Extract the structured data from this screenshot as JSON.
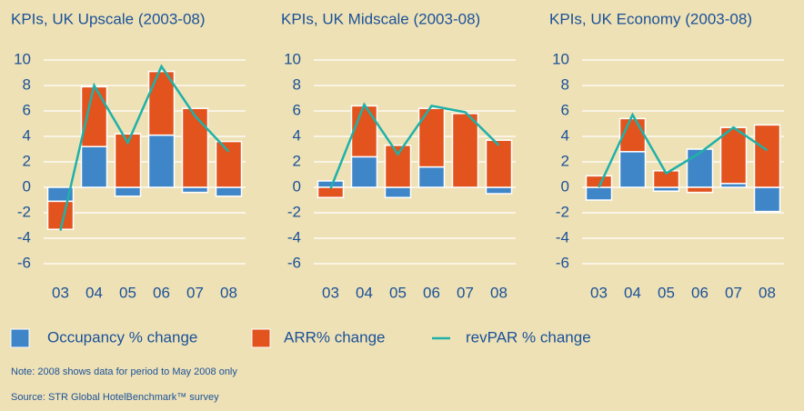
{
  "chart_data": [
    {
      "type": "bar",
      "title": "KPIs, UK Upscale (2003-08)",
      "categories": [
        "03",
        "04",
        "05",
        "06",
        "07",
        "08"
      ],
      "series": [
        {
          "name": "Occupancy % change",
          "color": "#3f86c9",
          "values": [
            -1.1,
            3.2,
            -0.7,
            4.1,
            -0.4,
            -0.7
          ]
        },
        {
          "name": "ARR% change",
          "color": "#e2531d",
          "values": [
            -2.2,
            4.7,
            4.2,
            5.0,
            6.2,
            3.6
          ]
        },
        {
          "name": "revPAR % change",
          "color": "#1fb1a8",
          "type": "line",
          "values": [
            -3.4,
            8.0,
            3.5,
            9.5,
            5.6,
            2.8
          ]
        }
      ],
      "ylim": [
        -6,
        10
      ],
      "yticks": [
        -6,
        -4,
        -2,
        0,
        2,
        4,
        6,
        8,
        10
      ],
      "grid": true
    },
    {
      "type": "bar",
      "title": "KPIs, UK Midscale (2003-08)",
      "categories": [
        "03",
        "04",
        "05",
        "06",
        "07",
        "08"
      ],
      "series": [
        {
          "name": "Occupancy % change",
          "color": "#3f86c9",
          "values": [
            0.5,
            2.4,
            -0.8,
            1.6,
            0,
            -0.5
          ]
        },
        {
          "name": "ARR% change",
          "color": "#e2531d",
          "values": [
            -0.8,
            4.0,
            3.3,
            4.6,
            5.8,
            3.7
          ]
        },
        {
          "name": "revPAR % change",
          "color": "#1fb1a8",
          "type": "line",
          "values": [
            -0.1,
            6.5,
            2.6,
            6.4,
            5.9,
            3.3
          ]
        }
      ],
      "ylim": [
        -6,
        10
      ],
      "yticks": [
        -6,
        -4,
        -2,
        0,
        2,
        4,
        6,
        8,
        10
      ],
      "grid": true
    },
    {
      "type": "bar",
      "title": "KPIs, UK Economy (2003-08)",
      "categories": [
        "03",
        "04",
        "05",
        "06",
        "07",
        "08"
      ],
      "series": [
        {
          "name": "Occupancy % change",
          "color": "#3f86c9",
          "values": [
            -1.0,
            2.8,
            -0.3,
            3.0,
            0.3,
            -1.9
          ]
        },
        {
          "name": "ARR% change",
          "color": "#e2531d",
          "values": [
            0.9,
            2.6,
            1.3,
            -0.4,
            4.4,
            4.9
          ]
        },
        {
          "name": "revPAR % change",
          "color": "#1fb1a8",
          "type": "line",
          "values": [
            0,
            5.7,
            1.1,
            2.7,
            4.7,
            2.9
          ]
        }
      ],
      "ylim": [
        -6,
        10
      ],
      "yticks": [
        -6,
        -4,
        -2,
        0,
        2,
        4,
        6,
        8,
        10
      ],
      "grid": true
    }
  ],
  "notes": [
    "Note: 2008 shows data for period to May 2008 only",
    "Source: STR Global HotelBenchmark™ survey"
  ]
}
